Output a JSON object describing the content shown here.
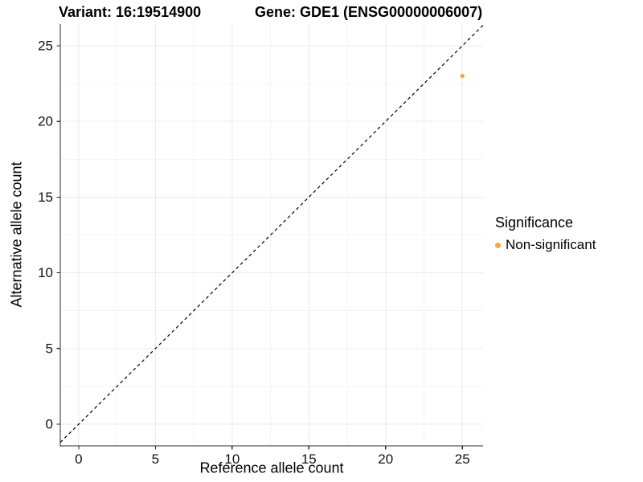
{
  "chart_data": {
    "type": "scatter",
    "title_left": "Variant: 16:19514900",
    "title_right": "Gene: GDE1 (ENSG00000006007)",
    "xlabel": "Reference allele count",
    "ylabel": "Alternative allele count",
    "xlim": [
      -1.2,
      26.35
    ],
    "ylim": [
      -1.43,
      26.43
    ],
    "x_ticks": [
      0,
      5,
      10,
      15,
      20,
      25
    ],
    "y_ticks": [
      0,
      5,
      10,
      15,
      20,
      25
    ],
    "x_minor_ticks": [
      2.5,
      7.5,
      12.5,
      17.5,
      22.5
    ],
    "y_minor_ticks": [
      2.5,
      7.5,
      12.5,
      17.5,
      22.5
    ],
    "grid": true,
    "identity_line": {
      "style": "dashed",
      "color": "#000000"
    },
    "series": [
      {
        "name": "Non-significant",
        "color": "#FAA43A",
        "points": [
          {
            "x": 25,
            "y": 23
          }
        ]
      }
    ],
    "legend": {
      "title": "Significance",
      "position": "right",
      "items": [
        {
          "label": "Non-significant",
          "color": "#FAA43A"
        }
      ]
    },
    "colors": {
      "grid_major": "#EBEBEB",
      "grid_minor": "#F5F5F5",
      "axis_line": "#2b2b2b",
      "tick_text": "#111111"
    }
  }
}
